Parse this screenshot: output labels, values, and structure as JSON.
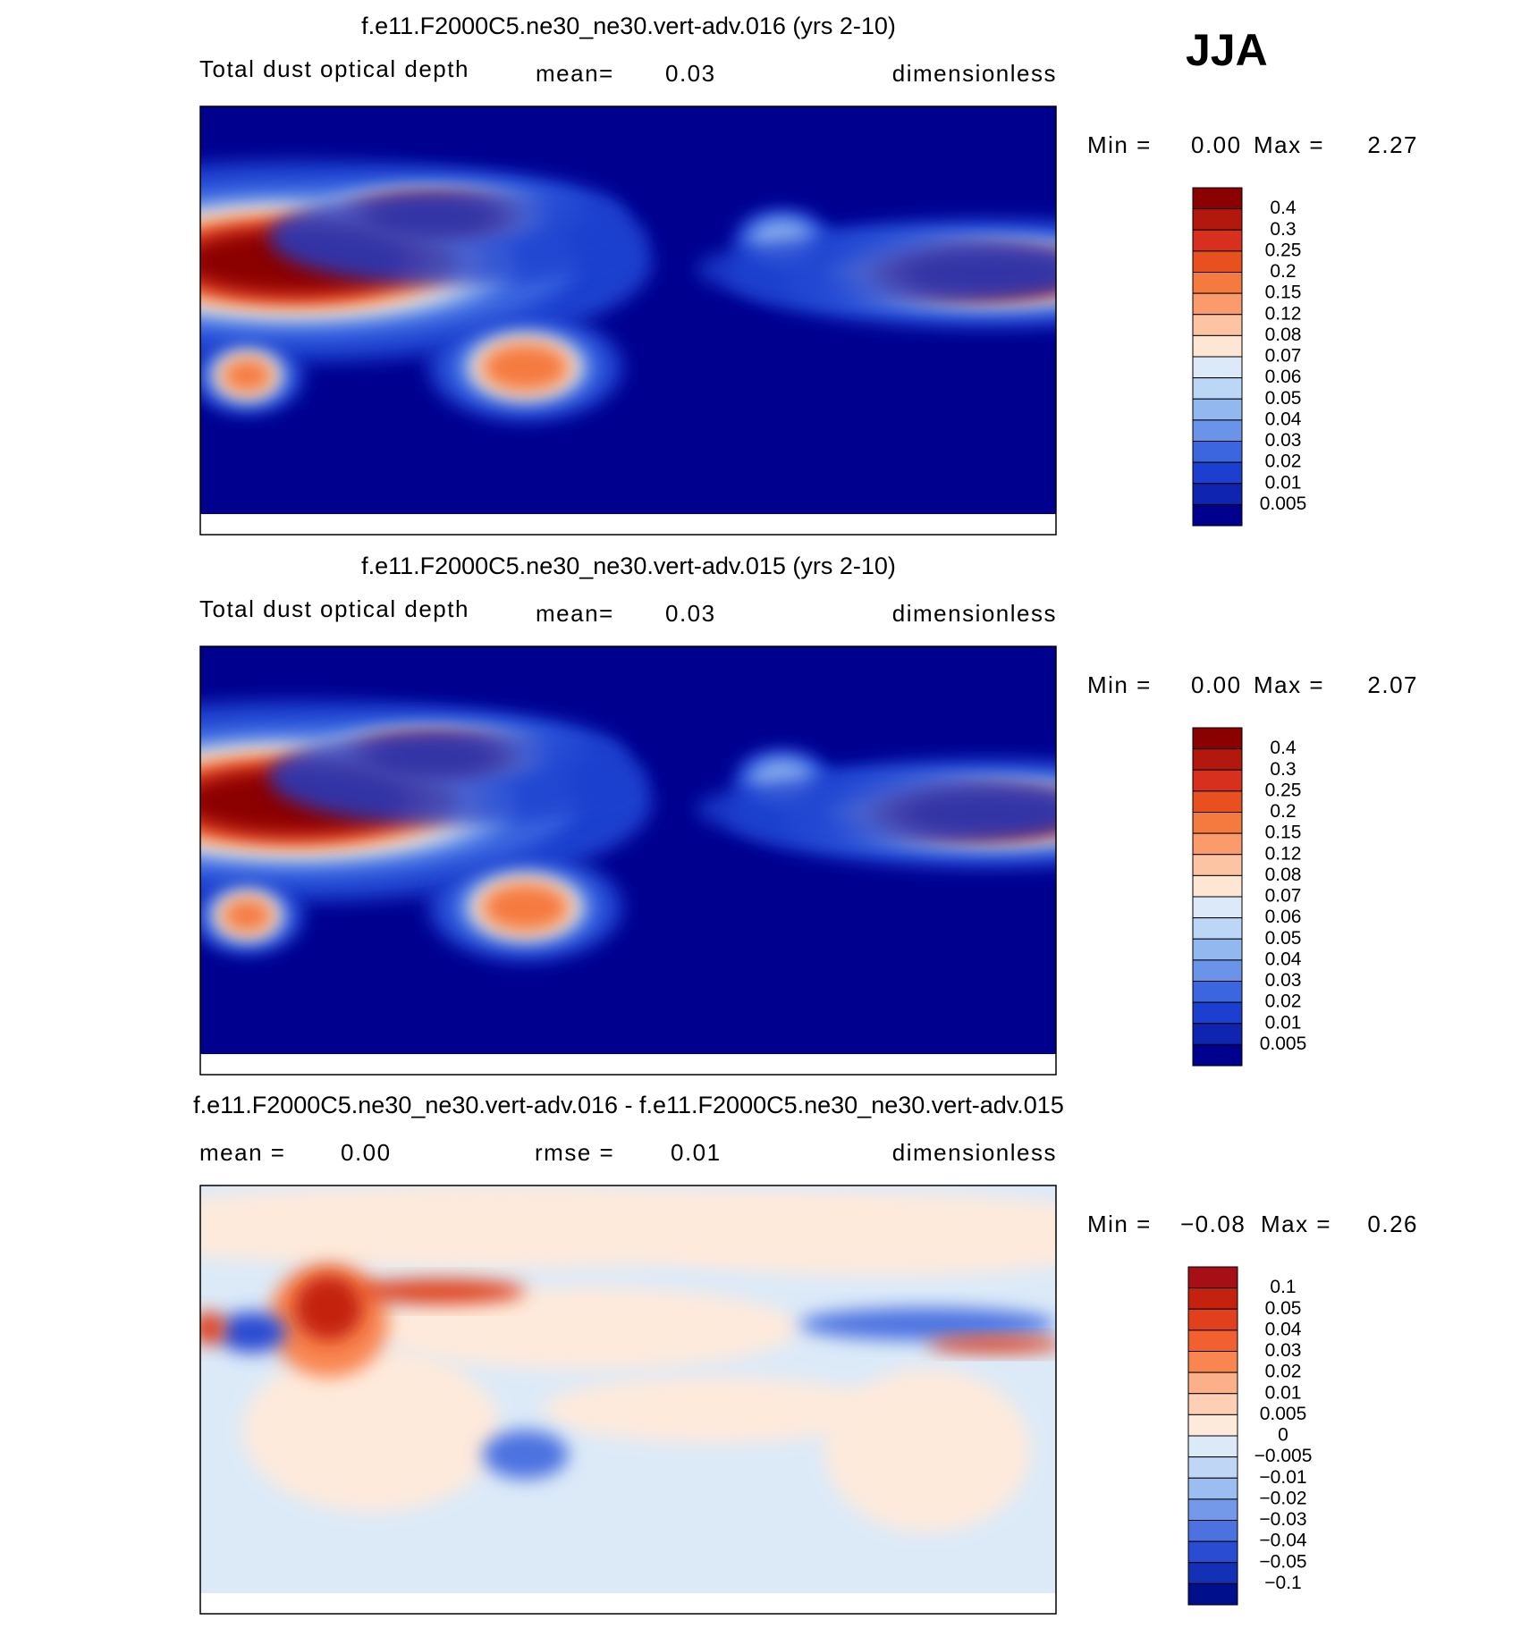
{
  "season": "JJA",
  "panels": [
    {
      "title": "f.e11.F2000C5.ne30_ne30.vert-adv.016 (yrs 2-10)",
      "variable": "Total dust optical depth",
      "mean_label": "mean=",
      "mean": "0.03",
      "units": "dimensionless",
      "min_label": "Min =",
      "min": "0.00",
      "max_label": "Max =",
      "max": "2.27",
      "colorbar": {
        "colors": [
          "#8b0000",
          "#b2180e",
          "#d7301f",
          "#e8501f",
          "#f57a40",
          "#fb9a6a",
          "#fdc4a3",
          "#fde6d3",
          "#dbe9f8",
          "#bcd6f5",
          "#93b8f0",
          "#6a94ea",
          "#3b66e0",
          "#1d3fcf",
          "#0f24b0",
          "#00008f"
        ],
        "labels": [
          "0.4",
          "0.3",
          "0.25",
          "0.2",
          "0.15",
          "0.12",
          "0.08",
          "0.07",
          "0.06",
          "0.05",
          "0.04",
          "0.03",
          "0.02",
          "0.01",
          "0.005"
        ]
      }
    },
    {
      "title": "f.e11.F2000C5.ne30_ne30.vert-adv.015 (yrs 2-10)",
      "variable": "Total dust optical depth",
      "mean_label": "mean=",
      "mean": "0.03",
      "units": "dimensionless",
      "min_label": "Min =",
      "min": "0.00",
      "max_label": "Max =",
      "max": "2.07",
      "colorbar": {
        "colors": [
          "#8b0000",
          "#b2180e",
          "#d7301f",
          "#e8501f",
          "#f57a40",
          "#fb9a6a",
          "#fdc4a3",
          "#fde6d3",
          "#dbe9f8",
          "#bcd6f5",
          "#93b8f0",
          "#6a94ea",
          "#3b66e0",
          "#1d3fcf",
          "#0f24b0",
          "#00008f"
        ],
        "labels": [
          "0.4",
          "0.3",
          "0.25",
          "0.2",
          "0.15",
          "0.12",
          "0.08",
          "0.07",
          "0.06",
          "0.05",
          "0.04",
          "0.03",
          "0.02",
          "0.01",
          "0.005"
        ]
      }
    },
    {
      "title": "f.e11.F2000C5.ne30_ne30.vert-adv.016 - f.e11.F2000C5.ne30_ne30.vert-adv.015",
      "mean_label": "mean =",
      "mean": "0.00",
      "rmse_label": "rmse =",
      "rmse": "0.01",
      "units": "dimensionless",
      "min_label": "Min =",
      "min": "−0.08",
      "max_label": "Max =",
      "max": "0.26",
      "colorbar": {
        "colors": [
          "#a50f15",
          "#c4220e",
          "#e0401b",
          "#f06030",
          "#f98550",
          "#fcb08a",
          "#fdd0b5",
          "#feeadb",
          "#dceaf8",
          "#bfd7f4",
          "#9cbdf0",
          "#7499e8",
          "#4c72e0",
          "#2a4cd2",
          "#1430b5",
          "#000f8c"
        ],
        "labels": [
          "0.1",
          "0.05",
          "0.04",
          "0.03",
          "0.02",
          "0.01",
          "0.005",
          "0",
          "−0.005",
          "−0.01",
          "−0.02",
          "−0.03",
          "−0.04",
          "−0.05",
          "−0.1"
        ]
      }
    }
  ]
}
